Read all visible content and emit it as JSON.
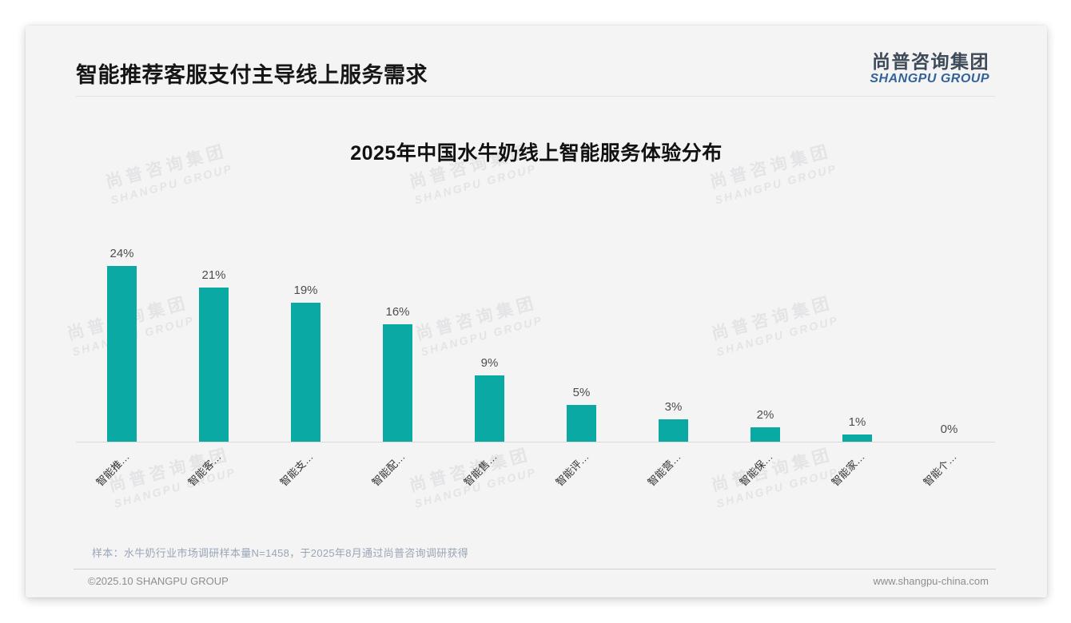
{
  "page": {
    "title": "智能推荐客服支付主导线上服务需求",
    "logo": {
      "cn": "尚普咨询集团",
      "en": "SHANGPU GROUP"
    },
    "watermark": {
      "cn": "尚普咨询集团",
      "en": "SHANGPU GROUP"
    },
    "note": "样本：水牛奶行业市场调研样本量N=1458，于2025年8月通过尚普咨询调研获得",
    "footer": {
      "left": "©2025.10 SHANGPU GROUP",
      "right": "www.shangpu-china.com"
    }
  },
  "chart_data": {
    "type": "bar",
    "title": "2025年中国水牛奶线上智能服务体验分布",
    "categories": [
      "智能推…",
      "智能客…",
      "智能支…",
      "智能配…",
      "智能售…",
      "智能评…",
      "智能营…",
      "智能保…",
      "智能家…",
      "智能个…"
    ],
    "values": [
      24,
      21,
      19,
      16,
      9,
      5,
      3,
      2,
      1,
      0
    ],
    "value_labels": [
      "24%",
      "21%",
      "19%",
      "16%",
      "9%",
      "5%",
      "3%",
      "2%",
      "1%",
      "0%"
    ],
    "bar_color": "#0ba9a4",
    "xlabel": "",
    "ylabel": "",
    "ylim": [
      0,
      26
    ],
    "grid": false,
    "legend": null,
    "label_rotation_deg": 45
  }
}
